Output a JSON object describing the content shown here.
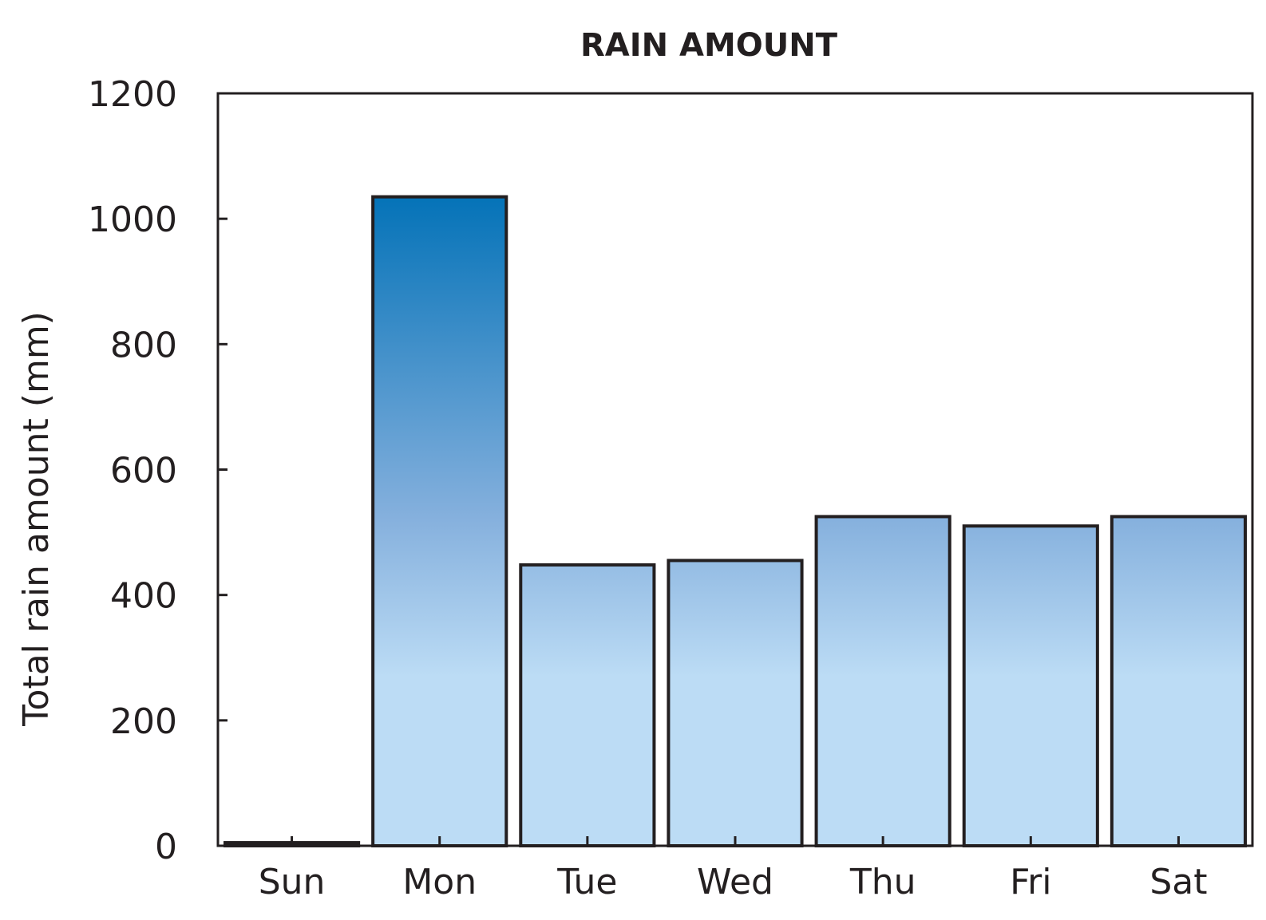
{
  "chart_data": {
    "type": "bar",
    "title": "RAIN AMOUNT",
    "xlabel": "",
    "ylabel": "Total rain amount (mm)",
    "categories": [
      "Sun",
      "Mon",
      "Tue",
      "Wed",
      "Thu",
      "Fri",
      "Sat"
    ],
    "values": [
      5,
      1035,
      448,
      455,
      525,
      510,
      525
    ],
    "ylim": [
      0,
      1200
    ],
    "yticks": [
      0,
      200,
      400,
      600,
      800,
      1000,
      1200
    ],
    "grid": false,
    "legend": "none",
    "colors": {
      "bar_top_max": "#0573b8",
      "bar_mid": "#85b0dd",
      "bar_bottom": "#bcdcf5",
      "outline": "#231f20"
    }
  }
}
